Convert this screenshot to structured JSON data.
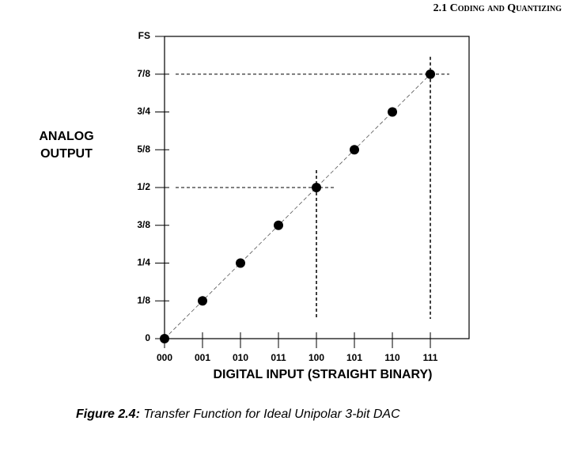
{
  "chart_data": {
    "type": "line",
    "header": "2.1 Coding and Quantizing",
    "ylabel": [
      "ANALOG",
      "OUTPUT"
    ],
    "xlabel": "DIGITAL INPUT (STRAIGHT BINARY)",
    "caption_label": "Figure 2.4:",
    "caption_text": "Transfer Function for Ideal Unipolar 3-bit DAC",
    "categories": [
      "000",
      "001",
      "010",
      "011",
      "100",
      "101",
      "110",
      "111"
    ],
    "values": [
      0,
      0.125,
      0.25,
      0.375,
      0.5,
      0.625,
      0.75,
      0.875
    ],
    "color": "#000000",
    "highlighted_points": [
      4,
      7
    ],
    "ylim": [
      0,
      1
    ],
    "yticks": [
      0,
      {
        "value": 0.125,
        "label": "1/8"
      },
      {
        "value": 0.25,
        "label": "1/4"
      },
      {
        "value": 0.375,
        "label": "3/8"
      },
      {
        "value": 0.5,
        "label": "1/2"
      },
      {
        "value": 0.625,
        "label": "5/8"
      },
      {
        "value": 0.75,
        "label": "3/4"
      },
      {
        "value": 0.875,
        "label": "7/8"
      },
      {
        "value": 1,
        "label": "FS"
      }
    ]
  }
}
